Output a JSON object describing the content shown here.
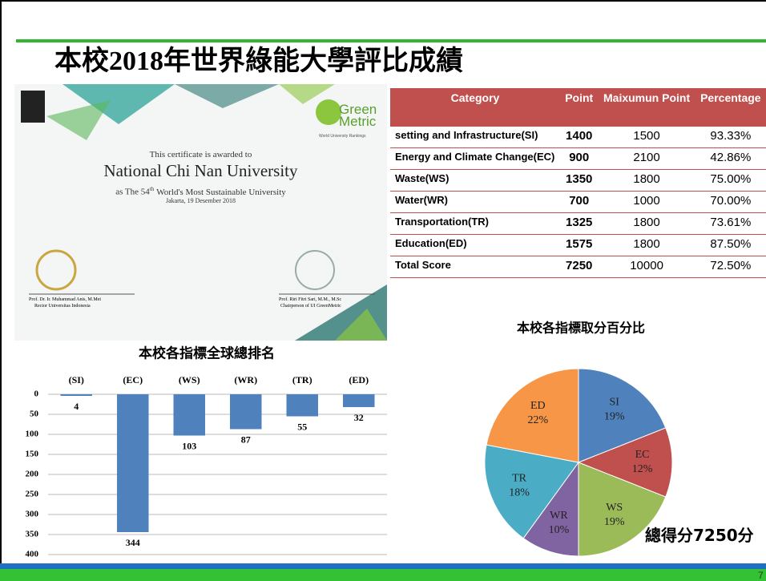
{
  "title": "本校2018年世界綠能大學評比成績",
  "certificate": {
    "logo_green": "Green",
    "logo_metric": "Metric",
    "logo_sub": "World University Rankings",
    "awarded": "This certificate is awarded to",
    "university": "National Chi Nan University",
    "rank_prefix": "as The 54",
    "rank_suffix": "th",
    "rank_rest": "World's Most Sustainable University",
    "date": "Jakarta, 19 Desember 2018",
    "signer1": "Prof. Dr. Ir. Muhammad Anis, M.Met",
    "signer1_role": "Rector Universitas Indonesia",
    "signer2": "Prof. Riri Fitri Sari, M.M., M.Sc",
    "signer2_role": "Chairperson of UI GreenMetric"
  },
  "table": {
    "header": [
      "Category",
      "Point",
      "Maixumun Point",
      "Percentage"
    ],
    "rows": [
      [
        "setting and Infrastructure(SI)",
        "1400",
        "1500",
        "93.33%"
      ],
      [
        "Energy and Climate Change(EC)",
        "900",
        "2100",
        "42.86%"
      ],
      [
        "Waste(WS)",
        "1350",
        "1800",
        "75.00%"
      ],
      [
        "Water(WR)",
        "700",
        "1000",
        "70.00%"
      ],
      [
        "Transportation(TR)",
        "1325",
        "1800",
        "73.61%"
      ],
      [
        "Education(ED)",
        "1575",
        "1800",
        "87.50%"
      ],
      [
        "Total Score",
        "7250",
        "10000",
        "72.50%"
      ]
    ]
  },
  "chart_data": [
    {
      "type": "bar",
      "title": "本校各指標全球總排名",
      "categories": [
        "(SI)",
        "(EC)",
        "(WS)",
        "(WR)",
        "(TR)",
        "(ED)"
      ],
      "values": [
        4,
        344,
        103,
        87,
        55,
        32
      ],
      "color": "#4f81bd",
      "ylim": [
        0,
        400
      ],
      "yticks": [
        0,
        50,
        100,
        150,
        200,
        250,
        300,
        350,
        400
      ],
      "y_inverted": true,
      "grid": true
    },
    {
      "type": "pie",
      "title": "本校各指標取分百分比",
      "categories": [
        "SI",
        "EC",
        "WS",
        "WR",
        "TR",
        "ED"
      ],
      "values": [
        19,
        12,
        19,
        10,
        18,
        22
      ],
      "value_labels": [
        "19%",
        "12%",
        "19%",
        "10%",
        "18%",
        "22%"
      ],
      "colors": [
        "#4f81bd",
        "#c0504d",
        "#9bbb59",
        "#8064a2",
        "#4bacc6",
        "#f79646"
      ]
    }
  ],
  "total_score": "總得分7250分",
  "page_number": "7"
}
